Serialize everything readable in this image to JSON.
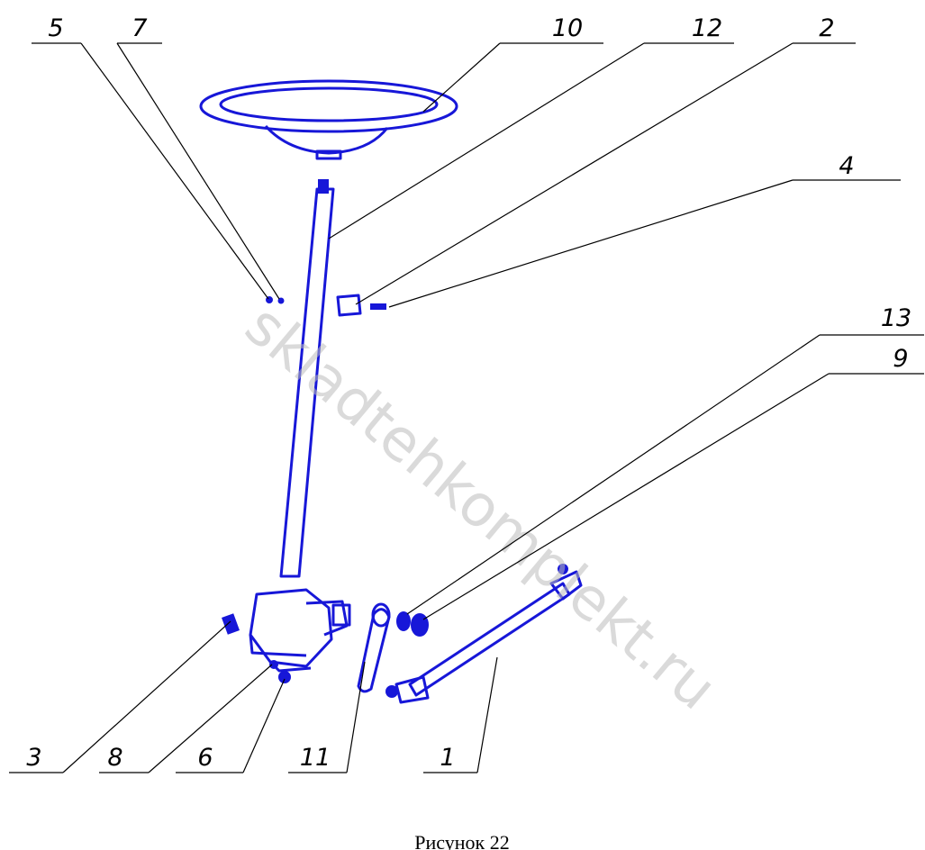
{
  "callouts": [
    {
      "label": "5"
    },
    {
      "label": "7"
    },
    {
      "label": "10"
    },
    {
      "label": "12"
    },
    {
      "label": "2"
    },
    {
      "label": "4"
    },
    {
      "label": "13"
    },
    {
      "label": "9"
    },
    {
      "label": "3"
    },
    {
      "label": "8"
    },
    {
      "label": "6"
    },
    {
      "label": "11"
    },
    {
      "label": "1"
    }
  ],
  "watermark": "skladtehkomplekt.ru",
  "caption": "Рисунок 22"
}
